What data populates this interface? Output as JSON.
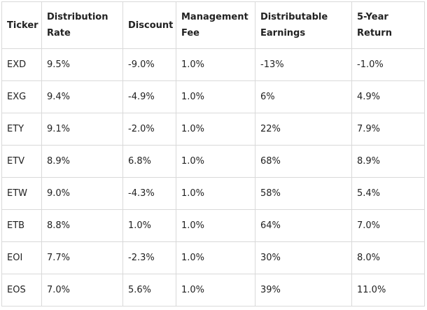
{
  "table": {
    "headers": [
      [
        "Ticker"
      ],
      [
        "Distribution",
        "Rate"
      ],
      [
        "Discount"
      ],
      [
        "Management",
        "Fee"
      ],
      [
        "Distributable",
        "Earnings"
      ],
      [
        "5-Year",
        "Return"
      ]
    ],
    "rows": [
      [
        "EXD",
        "9.5%",
        "-9.0%",
        "1.0%",
        "-13%",
        "-1.0%"
      ],
      [
        "EXG",
        "9.4%",
        "-4.9%",
        "1.0%",
        "6%",
        "4.9%"
      ],
      [
        "ETY",
        "9.1%",
        "-2.0%",
        "1.0%",
        "22%",
        "7.9%"
      ],
      [
        "ETV",
        "8.9%",
        "6.8%",
        "1.0%",
        "68%",
        "8.9%"
      ],
      [
        "ETW",
        "9.0%",
        "-4.3%",
        "1.0%",
        "58%",
        "5.4%"
      ],
      [
        "ETB",
        "8.8%",
        "1.0%",
        "1.0%",
        "64%",
        "7.0%"
      ],
      [
        "EOI",
        "7.7%",
        "-2.3%",
        "1.0%",
        "30%",
        "8.0%"
      ],
      [
        "EOS",
        "7.0%",
        "5.6%",
        "1.0%",
        "39%",
        "11.0%"
      ]
    ]
  }
}
